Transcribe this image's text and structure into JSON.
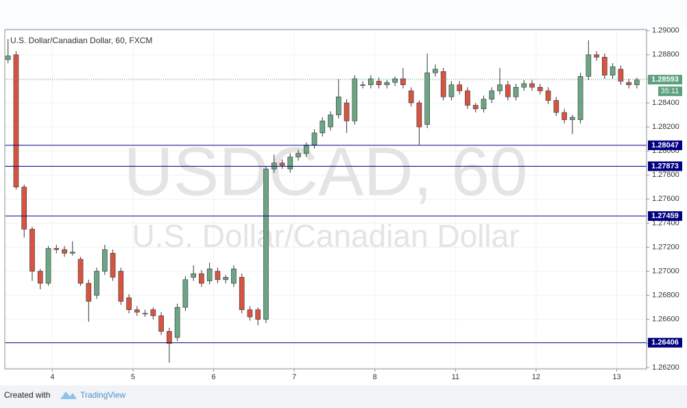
{
  "chart_data": {
    "type": "candlestick",
    "title": "U.S. Dollar/Canadian Dollar, 60, FXCM",
    "watermark": "USDCAD, 60",
    "watermark_subtitle": "U.S. Dollar/Canadian Dollar",
    "up_color": "#6ba583",
    "down_color": "#d75442",
    "level_color": "#000080",
    "last_color": "#5ba17d",
    "x": [
      0,
      1,
      2,
      3,
      4,
      5,
      6,
      7,
      8,
      9,
      10,
      11,
      12,
      13,
      14,
      15,
      16,
      17,
      18,
      19,
      20,
      21,
      22,
      23,
      24,
      25,
      26,
      27,
      28,
      29,
      30,
      31,
      32,
      33,
      34,
      35,
      36,
      37,
      38,
      39,
      40,
      41,
      42,
      43,
      44,
      45,
      46,
      47,
      48,
      49,
      50,
      51,
      52,
      53,
      54,
      55,
      56,
      57,
      58,
      59,
      60,
      61,
      62,
      63,
      64,
      65,
      66,
      67,
      68,
      69,
      70,
      71,
      72,
      73,
      74,
      75,
      76,
      77,
      78
    ],
    "open": [
      1.2876,
      1.288,
      1.277,
      1.2735,
      1.27,
      1.269,
      1.2719,
      1.2718,
      1.2715,
      1.271,
      1.269,
      1.268,
      1.27,
      1.2715,
      1.27,
      1.2678,
      1.2668,
      1.2665,
      1.2668,
      1.2663,
      1.265,
      1.2645,
      1.267,
      1.2695,
      1.2698,
      1.2692,
      1.27,
      1.2693,
      1.269,
      1.2695,
      1.2668,
      1.2668,
      1.266,
      1.2785,
      1.279,
      1.2785,
      1.2795,
      1.2798,
      1.2805,
      1.2815,
      1.282,
      1.283,
      1.284,
      1.2825,
      1.2855,
      1.2855,
      1.2858,
      1.2855,
      1.2857,
      1.286,
      1.285,
      1.284,
      1.2822,
      1.2865,
      1.2866,
      1.2845,
      1.2855,
      1.285,
      1.2838,
      1.2835,
      1.2843,
      1.285,
      1.2855,
      1.2845,
      1.2853,
      1.2856,
      1.2853,
      1.285,
      1.2842,
      1.2832,
      1.2826,
      1.2826,
      1.2862,
      1.288,
      1.2878,
      1.2863,
      1.2868,
      1.2857,
      1.2855
    ],
    "high": [
      1.2893,
      1.2883,
      1.2772,
      1.2737,
      1.2702,
      1.2721,
      1.2722,
      1.2721,
      1.2725,
      1.2712,
      1.2693,
      1.2703,
      1.2722,
      1.2718,
      1.2703,
      1.2681,
      1.2671,
      1.2668,
      1.267,
      1.2666,
      1.2653,
      1.2673,
      1.2696,
      1.2705,
      1.2701,
      1.2707,
      1.2703,
      1.2697,
      1.2705,
      1.2698,
      1.2671,
      1.267,
      1.2787,
      1.2797,
      1.2793,
      1.2798,
      1.2801,
      1.2807,
      1.2818,
      1.2828,
      1.2833,
      1.286,
      1.2843,
      1.2863,
      1.2858,
      1.2863,
      1.2861,
      1.2859,
      1.2862,
      1.2869,
      1.2853,
      1.2842,
      1.2881,
      1.2872,
      1.2869,
      1.2858,
      1.2858,
      1.2853,
      1.284,
      1.2846,
      1.2853,
      1.2869,
      1.2858,
      1.2856,
      1.2859,
      1.2859,
      1.2856,
      1.2853,
      1.2845,
      1.2835,
      1.283,
      1.2865,
      1.2892,
      1.2883,
      1.2881,
      1.2873,
      1.2871,
      1.286,
      1.2861
    ],
    "low": [
      1.2873,
      1.2768,
      1.2728,
      1.2692,
      1.2685,
      1.2688,
      1.2715,
      1.2712,
      1.2713,
      1.2688,
      1.2658,
      1.2677,
      1.2697,
      1.2692,
      1.2672,
      1.2665,
      1.2663,
      1.2662,
      1.266,
      1.2647,
      1.2624,
      1.2642,
      1.2667,
      1.2692,
      1.2687,
      1.2689,
      1.269,
      1.269,
      1.2687,
      1.2665,
      1.2659,
      1.2655,
      1.2657,
      1.2782,
      1.2785,
      1.2782,
      1.2792,
      1.2795,
      1.2802,
      1.2812,
      1.2817,
      1.2827,
      1.2815,
      1.2822,
      1.2852,
      1.2852,
      1.2852,
      1.2852,
      1.2854,
      1.2852,
      1.2837,
      1.2805,
      1.2819,
      1.2862,
      1.2842,
      1.2842,
      1.2847,
      1.2835,
      1.2832,
      1.2832,
      1.284,
      1.2847,
      1.2842,
      1.2842,
      1.285,
      1.285,
      1.2847,
      1.2839,
      1.2829,
      1.2823,
      1.2814,
      1.2823,
      1.2859,
      1.2875,
      1.286,
      1.286,
      1.2855,
      1.2852,
      1.2852
    ],
    "close": [
      1.2879,
      1.277,
      1.2735,
      1.27,
      1.269,
      1.2719,
      1.2718,
      1.2715,
      1.2716,
      1.269,
      1.2675,
      1.27,
      1.2718,
      1.2695,
      1.2675,
      1.2668,
      1.2666,
      1.2665,
      1.2663,
      1.265,
      1.264,
      1.267,
      1.2693,
      1.2698,
      1.269,
      1.2702,
      1.2693,
      1.2695,
      1.2702,
      1.2668,
      1.2662,
      1.266,
      1.2785,
      1.279,
      1.2788,
      1.2795,
      1.2798,
      1.2805,
      1.2815,
      1.2825,
      1.283,
      1.2845,
      1.2825,
      1.286,
      1.2855,
      1.286,
      1.2855,
      1.2857,
      1.286,
      1.2855,
      1.284,
      1.282,
      1.2865,
      1.2868,
      1.2845,
      1.2855,
      1.285,
      1.2838,
      1.2835,
      1.2843,
      1.285,
      1.2855,
      1.2845,
      1.2853,
      1.2856,
      1.2853,
      1.285,
      1.2842,
      1.2832,
      1.2826,
      1.2828,
      1.2862,
      1.288,
      1.2878,
      1.2863,
      1.287,
      1.2858,
      1.2855,
      1.28593
    ],
    "xlim": [
      -0.4,
      79.2
    ],
    "xticks": [
      {
        "value": 5.5,
        "label": "4"
      },
      {
        "value": 15.5,
        "label": "5"
      },
      {
        "value": 25.5,
        "label": "6"
      },
      {
        "value": 35.5,
        "label": "7"
      },
      {
        "value": 45.5,
        "label": "8"
      },
      {
        "value": 55.5,
        "label": "11"
      },
      {
        "value": 65.5,
        "label": "12"
      },
      {
        "value": 75.5,
        "label": "13"
      }
    ],
    "ylim": [
      1.26188,
      1.2901
    ],
    "yticks": [
      {
        "value": 1.29,
        "label": "1.29000"
      },
      {
        "value": 1.288,
        "label": "1.28800"
      },
      {
        "value": 1.286,
        "label": "1.28600"
      },
      {
        "value": 1.284,
        "label": "1.28400"
      },
      {
        "value": 1.282,
        "label": "1.28200"
      },
      {
        "value": 1.28,
        "label": "1.28000"
      },
      {
        "value": 1.278,
        "label": "1.27800"
      },
      {
        "value": 1.276,
        "label": "1.27600"
      },
      {
        "value": 1.274,
        "label": "1.27400"
      },
      {
        "value": 1.272,
        "label": "1.27200"
      },
      {
        "value": 1.27,
        "label": "1.27000"
      },
      {
        "value": 1.268,
        "label": "1.26800"
      },
      {
        "value": 1.266,
        "label": "1.26600"
      },
      {
        "value": 1.264,
        "label": "1.26400"
      },
      {
        "value": 1.262,
        "label": "1.26200"
      }
    ],
    "grid": true,
    "levels": [
      1.28047,
      1.27873,
      1.27459,
      1.26406
    ],
    "last_price": 1.28593,
    "countdown": "35:11"
  },
  "footer": {
    "created_with": "Created with",
    "brand": "TradingView"
  }
}
